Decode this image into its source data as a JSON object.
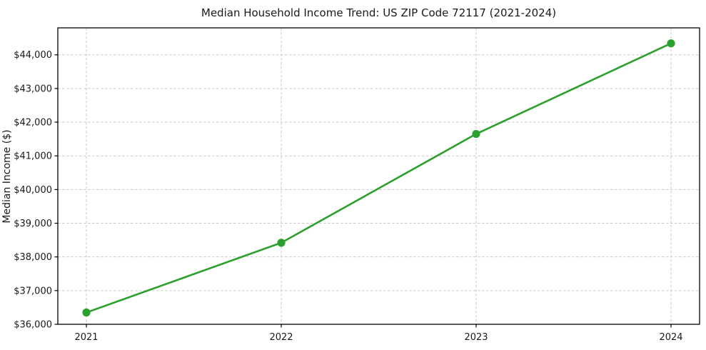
{
  "chart_data": {
    "type": "line",
    "title": "Median Household Income Trend: US ZIP Code 72117 (2021-2024)",
    "xlabel": "",
    "ylabel": "Median Income ($)",
    "categories": [
      "2021",
      "2022",
      "2023",
      "2024"
    ],
    "series": [
      {
        "name": "Median Household Income",
        "values": [
          36350,
          38420,
          41650,
          44340
        ],
        "color": "#2ca02c",
        "marker": "circle"
      }
    ],
    "ylim": [
      36000,
      44800
    ],
    "yticks": [
      36000,
      37000,
      38000,
      39000,
      40000,
      41000,
      42000,
      43000,
      44000
    ],
    "ytick_labels": [
      "$36,000",
      "$37,000",
      "$38,000",
      "$39,000",
      "$40,000",
      "$41,000",
      "$42,000",
      "$43,000",
      "$44,000"
    ],
    "xtick_labels": [
      "2021",
      "2022",
      "2023",
      "2024"
    ],
    "grid": true,
    "grid_color": "#c9c9c9",
    "grid_style": "dashed",
    "axis_color": "#000000",
    "background": "#ffffff",
    "legend": "none"
  }
}
